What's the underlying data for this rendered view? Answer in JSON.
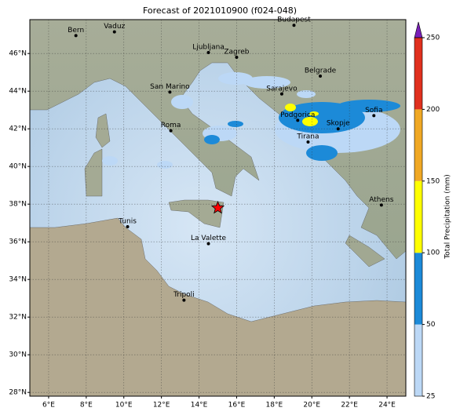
{
  "chart_data": {
    "type": "map",
    "title": "Forecast of 2021010900 (f024-048)",
    "xlim": [
      5,
      25
    ],
    "ylim": [
      27.8,
      47.8
    ],
    "xticks": [
      {
        "value": 6,
        "label": "6°E"
      },
      {
        "value": 8,
        "label": "8°E"
      },
      {
        "value": 10,
        "label": "10°E"
      },
      {
        "value": 12,
        "label": "12°E"
      },
      {
        "value": 14,
        "label": "14°E"
      },
      {
        "value": 16,
        "label": "16°E"
      },
      {
        "value": 18,
        "label": "18°E"
      },
      {
        "value": 20,
        "label": "20°E"
      },
      {
        "value": 22,
        "label": "22°E"
      },
      {
        "value": 24,
        "label": "24°E"
      }
    ],
    "yticks": [
      {
        "value": 28,
        "label": "28°N"
      },
      {
        "value": 30,
        "label": "30°N"
      },
      {
        "value": 32,
        "label": "32°N"
      },
      {
        "value": 34,
        "label": "34°N"
      },
      {
        "value": 36,
        "label": "36°N"
      },
      {
        "value": 38,
        "label": "38°N"
      },
      {
        "value": 40,
        "label": "40°N"
      },
      {
        "value": 42,
        "label": "42°N"
      },
      {
        "value": 44,
        "label": "44°N"
      },
      {
        "value": 46,
        "label": "46°N"
      }
    ],
    "grid": true,
    "cities": [
      {
        "name": "Bern",
        "lon": 7.45,
        "lat": 46.95
      },
      {
        "name": "Vaduz",
        "lon": 9.5,
        "lat": 47.15
      },
      {
        "name": "Budapest",
        "lon": 19.05,
        "lat": 47.5
      },
      {
        "name": "Ljubljana",
        "lon": 14.5,
        "lat": 46.05
      },
      {
        "name": "Zagreb",
        "lon": 16.0,
        "lat": 45.8
      },
      {
        "name": "Belgrade",
        "lon": 20.45,
        "lat": 44.8
      },
      {
        "name": "San Marino",
        "lon": 12.45,
        "lat": 43.95
      },
      {
        "name": "Sarajevo",
        "lon": 18.4,
        "lat": 43.85
      },
      {
        "name": "Podgorica",
        "lon": 19.25,
        "lat": 42.45
      },
      {
        "name": "Sofia",
        "lon": 23.3,
        "lat": 42.7
      },
      {
        "name": "Roma",
        "lon": 12.5,
        "lat": 41.9
      },
      {
        "name": "Skopje",
        "lon": 21.4,
        "lat": 42.0
      },
      {
        "name": "Tirana",
        "lon": 19.8,
        "lat": 41.3
      },
      {
        "name": "Athens",
        "lon": 23.7,
        "lat": 37.95
      },
      {
        "name": "Tunis",
        "lon": 10.2,
        "lat": 36.8
      },
      {
        "name": "La Valette",
        "lon": 14.5,
        "lat": 35.9
      },
      {
        "name": "Tripoli",
        "lon": 13.2,
        "lat": 32.9
      }
    ],
    "marker": {
      "lon": 15.0,
      "lat": 37.8,
      "color": "#ff0000"
    },
    "colorbar": {
      "label": "Total Precipitation (mm)",
      "levels": [
        25,
        50,
        100,
        150,
        200,
        250
      ],
      "colors": [
        "#bcd8f6",
        "#1c8ad8",
        "#ffff00",
        "#f0a824",
        "#e0301e"
      ],
      "extend_color": "#7a1fb8"
    }
  }
}
